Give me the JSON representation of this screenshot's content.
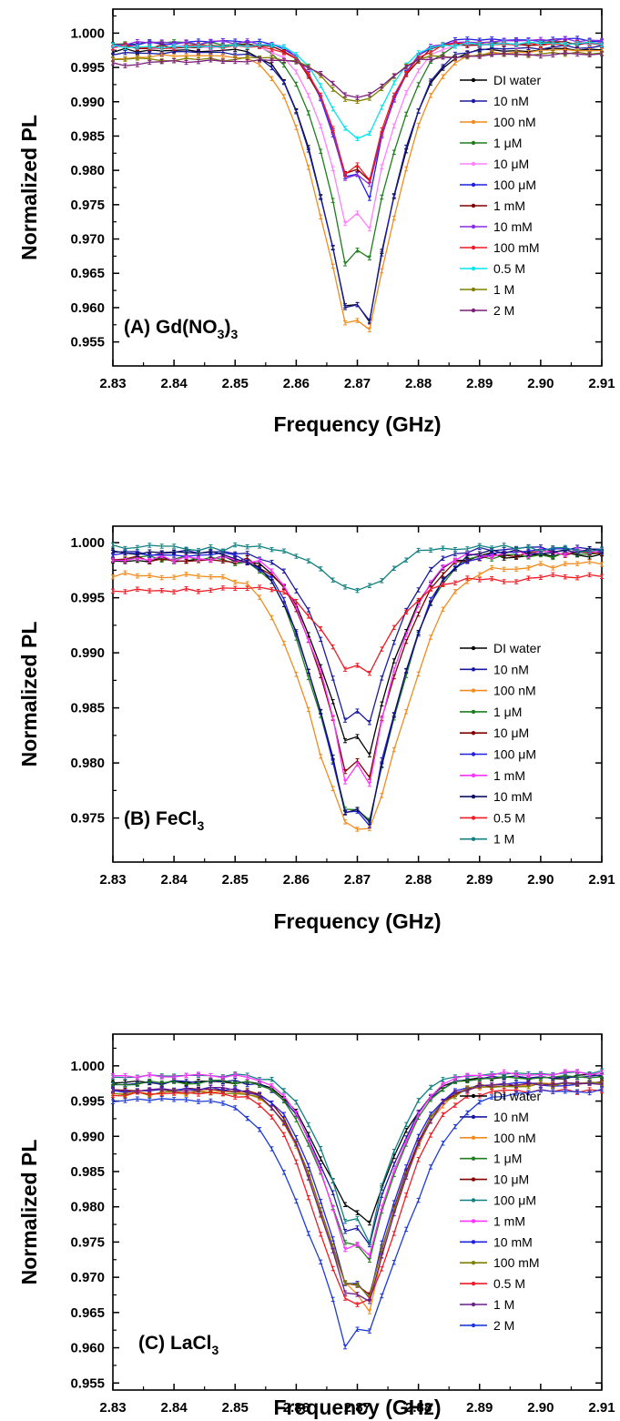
{
  "chart_data": [
    {
      "type": "line",
      "panel_label": "(A) Gd(NO",
      "panel_label_sub": "3",
      "panel_label_tail": ")",
      "panel_label_sub2": "3",
      "xlabel": "Frequency  (GHz)",
      "ylabel": "Normalized  PL",
      "xlim": [
        2.83,
        2.91
      ],
      "ylim": [
        0.9515,
        1.0035
      ],
      "xticks": [
        "2.83",
        "2.84",
        "2.85",
        "2.86",
        "2.87",
        "2.88",
        "2.89",
        "2.90",
        "2.91"
      ],
      "yticks": [
        "0.955",
        "0.960",
        "0.965",
        "0.970",
        "0.975",
        "0.980",
        "0.985",
        "0.990",
        "0.995",
        "1.000"
      ],
      "legend_position": "right",
      "series": [
        {
          "name": "DI water",
          "color": "#000000",
          "baseline": 0.9975,
          "baseline_end": 0.9975,
          "dip1": 0.9585,
          "dip2": 0.956,
          "mid": 0.9625,
          "width": 0.0085
        },
        {
          "name": "10 nM",
          "color": "#1a1aa0",
          "baseline": 0.997,
          "baseline_end": 0.998,
          "dip1": 0.958,
          "dip2": 0.956,
          "mid": 0.9625,
          "width": 0.0085
        },
        {
          "name": "100 nM",
          "color": "#f08c1e",
          "baseline": 0.9965,
          "baseline_end": 0.9975,
          "dip1": 0.956,
          "dip2": 0.955,
          "mid": 0.96,
          "width": 0.009
        },
        {
          "name": "1 μM",
          "color": "#1e7d1e",
          "baseline": 0.9985,
          "baseline_end": 0.9985,
          "dip1": 0.965,
          "dip2": 0.9655,
          "mid": 0.971,
          "width": 0.008
        },
        {
          "name": "10 μM",
          "color": "#ff80ff",
          "baseline": 0.998,
          "baseline_end": 0.9985,
          "dip1": 0.9705,
          "dip2": 0.97,
          "mid": 0.976,
          "width": 0.0075
        },
        {
          "name": "100 μM",
          "color": "#2020e0",
          "baseline": 0.9985,
          "baseline_end": 0.999,
          "dip1": 0.9775,
          "dip2": 0.9745,
          "mid": 0.9815,
          "width": 0.007
        },
        {
          "name": "1 mM",
          "color": "#800000",
          "baseline": 0.998,
          "baseline_end": 0.9985,
          "dip1": 0.978,
          "dip2": 0.977,
          "mid": 0.982,
          "width": 0.007
        },
        {
          "name": "10 mM",
          "color": "#8a2be2",
          "baseline": 0.9985,
          "baseline_end": 0.999,
          "dip1": 0.9772,
          "dip2": 0.9765,
          "mid": 0.9815,
          "width": 0.007
        },
        {
          "name": "100 mM",
          "color": "#ee1c25",
          "baseline": 0.998,
          "baseline_end": 0.9985,
          "dip1": 0.978,
          "dip2": 0.9775,
          "mid": 0.9825,
          "width": 0.007
        },
        {
          "name": "0.5 M",
          "color": "#00e5ee",
          "baseline": 0.998,
          "baseline_end": 0.9985,
          "dip1": 0.9848,
          "dip2": 0.9845,
          "mid": 0.985,
          "width": 0.0065
        },
        {
          "name": "1 M",
          "color": "#808000",
          "baseline": 0.996,
          "baseline_end": 0.997,
          "dip1": 0.9898,
          "dip2": 0.9898,
          "mid": 0.99,
          "width": 0.0065
        },
        {
          "name": "2 M",
          "color": "#7b1f7b",
          "baseline": 0.9955,
          "baseline_end": 0.997,
          "dip1": 0.9905,
          "dip2": 0.9905,
          "mid": 0.991,
          "width": 0.0065
        }
      ]
    },
    {
      "type": "line",
      "panel_label": "(B) FeCl",
      "panel_label_sub": "3",
      "panel_label_tail": "",
      "panel_label_sub2": "",
      "xlabel": "Frequency  (GHz)",
      "ylabel": "Normalized  PL",
      "xlim": [
        2.83,
        2.91
      ],
      "ylim": [
        0.971,
        1.0015
      ],
      "xticks": [
        "2.83",
        "2.84",
        "2.85",
        "2.86",
        "2.87",
        "2.88",
        "2.89",
        "2.90",
        "2.91"
      ],
      "yticks": [
        "0.975",
        "0.980",
        "0.985",
        "0.990",
        "0.995",
        "1.000"
      ],
      "legend_position": "right",
      "series": [
        {
          "name": "DI water",
          "color": "#000000",
          "baseline": 0.9985,
          "baseline_end": 0.999,
          "dip1": 0.9815,
          "dip2": 0.98,
          "mid": 0.9835,
          "width": 0.009
        },
        {
          "name": "10 nM",
          "color": "#1a1aa0",
          "baseline": 0.999,
          "baseline_end": 0.9995,
          "dip1": 0.983,
          "dip2": 0.983,
          "mid": 0.9858,
          "width": 0.0085
        },
        {
          "name": "100 nM",
          "color": "#f08c1e",
          "baseline": 0.997,
          "baseline_end": 0.998,
          "dip1": 0.974,
          "dip2": 0.9732,
          "mid": 0.9745,
          "width": 0.0105
        },
        {
          "name": "1 μM",
          "color": "#1e7d1e",
          "baseline": 0.9985,
          "baseline_end": 0.999,
          "dip1": 0.9748,
          "dip2": 0.9738,
          "mid": 0.977,
          "width": 0.0095
        },
        {
          "name": "10 μM",
          "color": "#800000",
          "baseline": 0.9985,
          "baseline_end": 0.999,
          "dip1": 0.9785,
          "dip2": 0.978,
          "mid": 0.9815,
          "width": 0.009
        },
        {
          "name": "100 μM",
          "color": "#2020e0",
          "baseline": 0.999,
          "baseline_end": 0.9992,
          "dip1": 0.9745,
          "dip2": 0.9735,
          "mid": 0.9772,
          "width": 0.0095
        },
        {
          "name": "1 mM",
          "color": "#ff33ff",
          "baseline": 0.9985,
          "baseline_end": 0.9992,
          "dip1": 0.9775,
          "dip2": 0.977,
          "mid": 0.9818,
          "width": 0.0088
        },
        {
          "name": "10 mM",
          "color": "#101060",
          "baseline": 0.999,
          "baseline_end": 0.9992,
          "dip1": 0.9748,
          "dip2": 0.9735,
          "mid": 0.9772,
          "width": 0.0095
        },
        {
          "name": "0.5 M",
          "color": "#ee1c25",
          "baseline": 0.9955,
          "baseline_end": 0.997,
          "dip1": 0.988,
          "dip2": 0.988,
          "mid": 0.989,
          "width": 0.008
        },
        {
          "name": "1 M",
          "color": "#128080",
          "baseline": 0.9995,
          "baseline_end": 0.9995,
          "dip1": 0.9957,
          "dip2": 0.9958,
          "mid": 0.9958,
          "width": 0.007
        }
      ]
    },
    {
      "type": "line",
      "panel_label": "(C) LaCl",
      "panel_label_sub": "3",
      "panel_label_tail": "",
      "panel_label_sub2": "",
      "xlabel": "Frequency  (GHz)",
      "ylabel": "Normalized  PL",
      "xlim": [
        2.83,
        2.91
      ],
      "ylim": [
        0.954,
        1.0045
      ],
      "xticks": [
        "2.83",
        "2.84",
        "2.85",
        "2.86",
        "2.87",
        "2.88",
        "2.89",
        "2.90",
        "2.91"
      ],
      "yticks": [
        "0.955",
        "0.960",
        "0.965",
        "0.970",
        "0.975",
        "0.980",
        "0.985",
        "0.990",
        "0.995",
        "1.000"
      ],
      "legend_position": "right",
      "series": [
        {
          "name": "DI water",
          "color": "#000000",
          "baseline": 0.9975,
          "baseline_end": 0.9985,
          "dip1": 0.9795,
          "dip2": 0.9765,
          "mid": 0.98,
          "width": 0.0085
        },
        {
          "name": "10 nM",
          "color": "#1a1aa0",
          "baseline": 0.9975,
          "baseline_end": 0.9985,
          "dip1": 0.9755,
          "dip2": 0.9735,
          "mid": 0.9785,
          "width": 0.0085
        },
        {
          "name": "100 nM",
          "color": "#f08c1e",
          "baseline": 0.996,
          "baseline_end": 0.9975,
          "dip1": 0.968,
          "dip2": 0.964,
          "mid": 0.969,
          "width": 0.009
        },
        {
          "name": "1 μM",
          "color": "#1e7d1e",
          "baseline": 0.9975,
          "baseline_end": 0.9985,
          "dip1": 0.9735,
          "dip2": 0.971,
          "mid": 0.976,
          "width": 0.0085
        },
        {
          "name": "10 μM",
          "color": "#800000",
          "baseline": 0.9965,
          "baseline_end": 0.9975,
          "dip1": 0.968,
          "dip2": 0.966,
          "mid": 0.97,
          "width": 0.009
        },
        {
          "name": "100 μM",
          "color": "#128080",
          "baseline": 0.9985,
          "baseline_end": 0.999,
          "dip1": 0.977,
          "dip2": 0.974,
          "mid": 0.98,
          "width": 0.008
        },
        {
          "name": "1 mM",
          "color": "#ff33ff",
          "baseline": 0.9985,
          "baseline_end": 0.999,
          "dip1": 0.9725,
          "dip2": 0.972,
          "mid": 0.976,
          "width": 0.0085
        },
        {
          "name": "10 mM",
          "color": "#2020e0",
          "baseline": 0.9965,
          "baseline_end": 0.9975,
          "dip1": 0.968,
          "dip2": 0.966,
          "mid": 0.971,
          "width": 0.0088
        },
        {
          "name": "100 mM",
          "color": "#808000",
          "baseline": 0.996,
          "baseline_end": 0.9975,
          "dip1": 0.968,
          "dip2": 0.966,
          "mid": 0.97,
          "width": 0.009
        },
        {
          "name": "0.5 M",
          "color": "#ee1c25",
          "baseline": 0.996,
          "baseline_end": 0.9965,
          "dip1": 0.9655,
          "dip2": 0.9655,
          "mid": 0.9665,
          "width": 0.0095
        },
        {
          "name": "1 M",
          "color": "#6a1f8a",
          "baseline": 0.9965,
          "baseline_end": 0.9975,
          "dip1": 0.9665,
          "dip2": 0.9655,
          "mid": 0.969,
          "width": 0.009
        },
        {
          "name": "2 M",
          "color": "#1f3bd6",
          "baseline": 0.995,
          "baseline_end": 0.9965,
          "dip1": 0.959,
          "dip2": 0.9615,
          "mid": 0.9645,
          "width": 0.0115
        }
      ]
    }
  ]
}
